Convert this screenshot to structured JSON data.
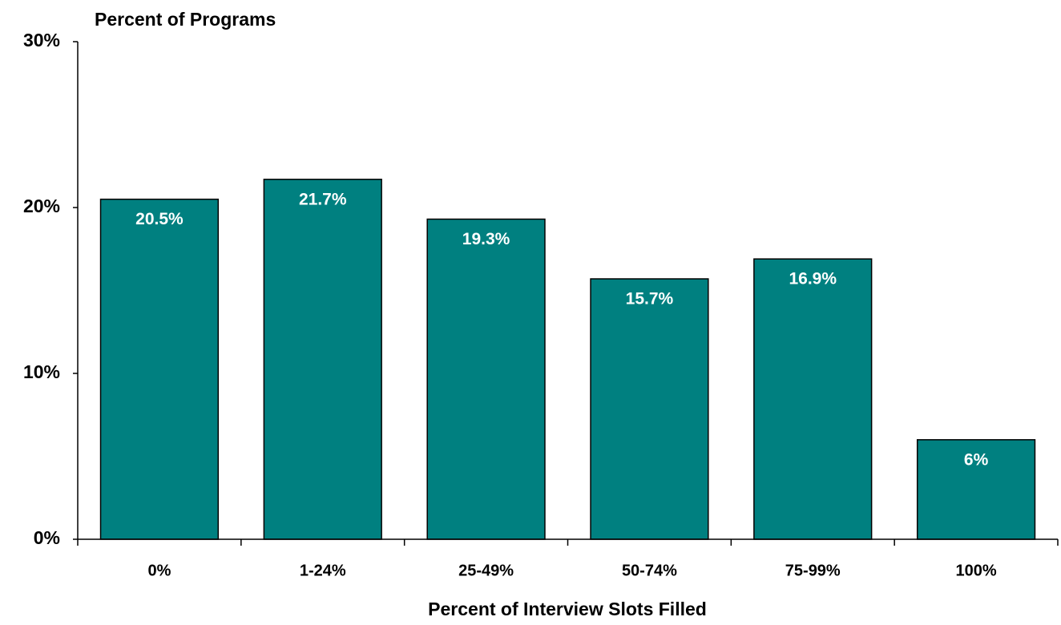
{
  "chart_data": {
    "type": "bar",
    "y_axis_label": "Percent of Programs",
    "x_axis_label": "Percent of Interview Slots Filled",
    "categories": [
      "0%",
      "1-24%",
      "25-49%",
      "50-74%",
      "75-99%",
      "100%"
    ],
    "values": [
      20.5,
      21.7,
      19.3,
      15.7,
      16.9,
      6
    ],
    "value_labels": [
      "20.5%",
      "21.7%",
      "19.3%",
      "15.7%",
      "16.9%",
      "6%"
    ],
    "color": "#008080",
    "ylim": [
      0,
      30
    ],
    "yticks": [
      {
        "value": 0,
        "label": "0%"
      },
      {
        "value": 10,
        "label": "10%"
      },
      {
        "value": 20,
        "label": "20%"
      },
      {
        "value": 30,
        "label": "30%"
      }
    ]
  }
}
